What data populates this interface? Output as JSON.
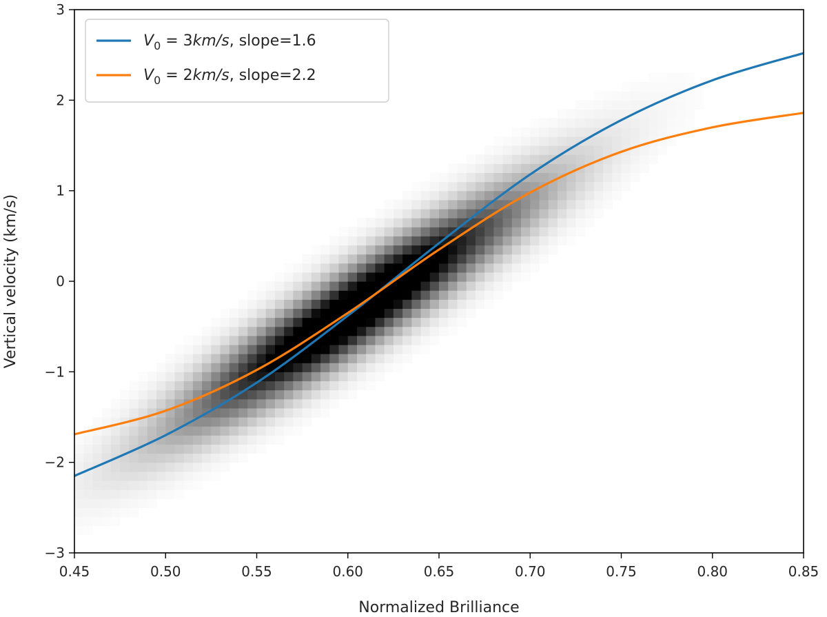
{
  "chart_data": {
    "type": "heatmap",
    "title": "",
    "xlabel": "Normalized Brilliance",
    "ylabel": "Vertical velocity (km/s)",
    "xlim": [
      0.45,
      0.85
    ],
    "ylim": [
      -3,
      3
    ],
    "xticks": [
      0.45,
      0.5,
      0.55,
      0.6,
      0.65,
      0.7,
      0.75,
      0.8,
      0.85
    ],
    "xtick_labels": [
      "0.45",
      "0.50",
      "0.55",
      "0.60",
      "0.65",
      "0.70",
      "0.75",
      "0.80",
      "0.85"
    ],
    "yticks": [
      -3,
      -2,
      -1,
      0,
      1,
      2,
      3
    ],
    "ytick_labels": [
      "−3",
      "−2",
      "−1",
      "0",
      "1",
      "2",
      "3"
    ],
    "grid": false,
    "legend_placement": "top-left",
    "density": {
      "description_colormap": "greys",
      "center_x": 0.605,
      "center_y": -0.3,
      "slope": 14.5,
      "sigma_along": 0.062,
      "sigma_perp": 0.33,
      "x_bins": 80,
      "y_bins": 60
    },
    "series": [
      {
        "name_prefix": "V",
        "name_subscript": "0",
        "name_value": " = 3km/s",
        "name_suffix": ", slope=1.6",
        "color": "#1f77b4",
        "x": [
          0.45,
          0.5,
          0.55,
          0.6,
          0.65,
          0.7,
          0.75,
          0.8,
          0.85
        ],
        "y": [
          -2.15,
          -1.7,
          -1.12,
          -0.38,
          0.42,
          1.18,
          1.78,
          2.22,
          2.52
        ]
      },
      {
        "name_prefix": "V",
        "name_subscript": "0",
        "name_value": " = 2km/s",
        "name_suffix": ", slope=2.2",
        "color": "#ff7f0e",
        "x": [
          0.45,
          0.5,
          0.55,
          0.6,
          0.65,
          0.7,
          0.75,
          0.8,
          0.85
        ],
        "y": [
          -1.69,
          -1.43,
          -0.98,
          -0.35,
          0.35,
          0.98,
          1.43,
          1.7,
          1.86
        ]
      }
    ]
  }
}
